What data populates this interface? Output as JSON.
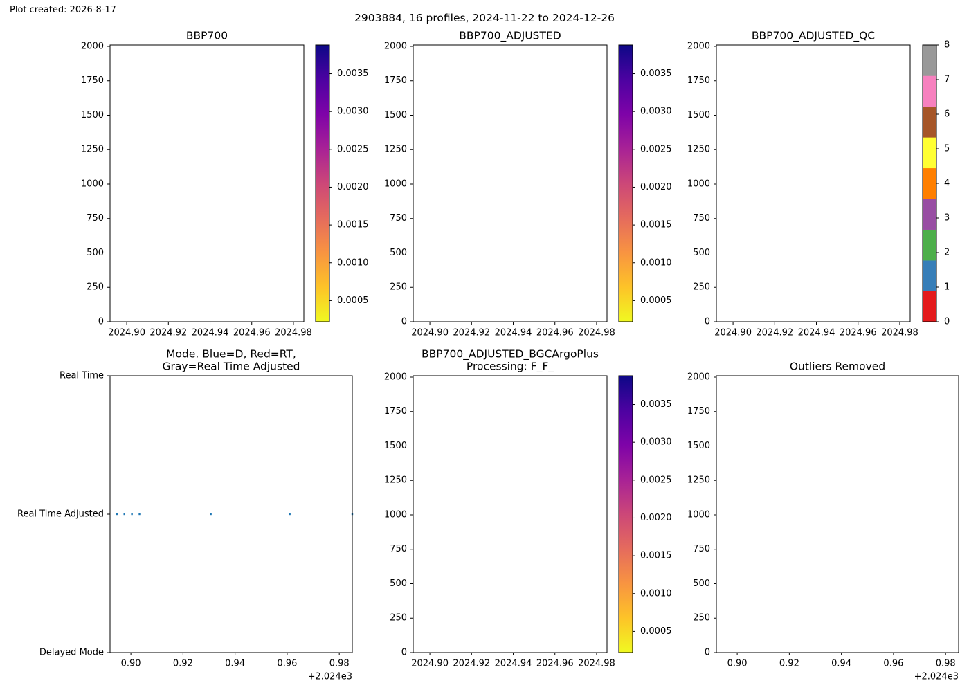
{
  "figure": {
    "created": "Plot created: 2026-8-17",
    "title": "2903884, 16 profiles, 2024-11-22 to 2024-12-26"
  },
  "colors": {
    "axis": "#000000",
    "scatter": "#1f77b4",
    "plasma_r": [
      "#f0f921",
      "#fdc328",
      "#f89441",
      "#e56b5d",
      "#cc4778",
      "#a82296",
      "#7e03a8",
      "#4c02a1",
      "#0d0887"
    ],
    "qc": [
      "#e41a1c",
      "#377eb8",
      "#4daf4a",
      "#984ea3",
      "#ff7f00",
      "#ffff33",
      "#a65628",
      "#f781bf",
      "#999999"
    ]
  },
  "chart_data": [
    {
      "id": "bbp700",
      "type": "heatmap",
      "title": "BBP700",
      "xlim": [
        2024.892,
        2024.985
      ],
      "xticks": [
        "2024.90",
        "2024.92",
        "2024.94",
        "2024.96",
        "2024.98"
      ],
      "xtick_values": [
        2024.9,
        2024.92,
        2024.94,
        2024.96,
        2024.98
      ],
      "ylim": [
        2010,
        0
      ],
      "yticks": [
        "0",
        "250",
        "500",
        "750",
        "1000",
        "1250",
        "1500",
        "1750",
        "2000"
      ],
      "ytick_values": [
        0,
        250,
        500,
        750,
        1000,
        1250,
        1500,
        1750,
        2000
      ],
      "values": [],
      "colorbar": {
        "range": [
          0.00022,
          0.00388
        ],
        "ticks": [
          "0.0005",
          "0.0010",
          "0.0015",
          "0.0020",
          "0.0025",
          "0.0030",
          "0.0035"
        ],
        "tick_values": [
          0.0005,
          0.001,
          0.0015,
          0.002,
          0.0025,
          0.003,
          0.0035
        ],
        "cmap": "plasma_r"
      }
    },
    {
      "id": "bbp700-adjusted",
      "type": "heatmap",
      "title": "BBP700_ADJUSTED",
      "xlim": [
        2024.892,
        2024.985
      ],
      "xticks": [
        "2024.90",
        "2024.92",
        "2024.94",
        "2024.96",
        "2024.98"
      ],
      "xtick_values": [
        2024.9,
        2024.92,
        2024.94,
        2024.96,
        2024.98
      ],
      "ylim": [
        2010,
        0
      ],
      "yticks": [
        "0",
        "250",
        "500",
        "750",
        "1000",
        "1250",
        "1500",
        "1750",
        "2000"
      ],
      "ytick_values": [
        0,
        250,
        500,
        750,
        1000,
        1250,
        1500,
        1750,
        2000
      ],
      "values": [],
      "colorbar": {
        "range": [
          0.00022,
          0.00388
        ],
        "ticks": [
          "0.0005",
          "0.0010",
          "0.0015",
          "0.0020",
          "0.0025",
          "0.0030",
          "0.0035"
        ],
        "tick_values": [
          0.0005,
          0.001,
          0.0015,
          0.002,
          0.0025,
          0.003,
          0.0035
        ],
        "cmap": "plasma_r"
      }
    },
    {
      "id": "bbp700-adjusted-qc",
      "type": "heatmap",
      "title": "BBP700_ADJUSTED_QC",
      "xlim": [
        2024.892,
        2024.985
      ],
      "xticks": [
        "2024.90",
        "2024.92",
        "2024.94",
        "2024.96",
        "2024.98"
      ],
      "xtick_values": [
        2024.9,
        2024.92,
        2024.94,
        2024.96,
        2024.98
      ],
      "ylim": [
        2010,
        0
      ],
      "yticks": [
        "0",
        "250",
        "500",
        "750",
        "1000",
        "1250",
        "1500",
        "1750",
        "2000"
      ],
      "ytick_values": [
        0,
        250,
        500,
        750,
        1000,
        1250,
        1500,
        1750,
        2000
      ],
      "values": [],
      "colorbar": {
        "range": [
          0,
          8
        ],
        "ticks": [
          "0",
          "1",
          "2",
          "3",
          "4",
          "5",
          "6",
          "7",
          "8"
        ],
        "tick_values": [
          0,
          1,
          2,
          3,
          4,
          5,
          6,
          7,
          8
        ],
        "cmap": "qc"
      }
    },
    {
      "id": "mode",
      "type": "scatter",
      "title": "Mode. Blue=D, Red=RT,",
      "title2": "Gray=Real Time Adjusted",
      "xlim": [
        2024.892,
        2024.985
      ],
      "xticks": [
        "0.90",
        "0.92",
        "0.94",
        "0.96",
        "0.98"
      ],
      "xtick_values": [
        2024.9,
        2024.92,
        2024.94,
        2024.96,
        2024.98
      ],
      "x_offset": "+2.024e3",
      "ylim": [
        0,
        2
      ],
      "yticks": [
        "Real Time",
        "Real Time Adjusted",
        "Delayed Mode"
      ],
      "ytick_values": [
        0,
        1,
        2
      ],
      "x": [
        2024.8946,
        2024.8975,
        2024.9004,
        2024.9033,
        2024.9307,
        2024.961,
        2024.985
      ],
      "y": [
        1,
        1,
        1,
        1,
        1,
        1,
        1
      ]
    },
    {
      "id": "bgcargoplus",
      "type": "heatmap",
      "title": "BBP700_ADJUSTED_BGCArgoPlus",
      "title2": "Processing: F_F_",
      "xlim": [
        2024.892,
        2024.985
      ],
      "xticks": [
        "2024.90",
        "2024.92",
        "2024.94",
        "2024.96",
        "2024.98"
      ],
      "xtick_values": [
        2024.9,
        2024.92,
        2024.94,
        2024.96,
        2024.98
      ],
      "ylim": [
        2010,
        0
      ],
      "yticks": [
        "0",
        "250",
        "500",
        "750",
        "1000",
        "1250",
        "1500",
        "1750",
        "2000"
      ],
      "ytick_values": [
        0,
        250,
        500,
        750,
        1000,
        1250,
        1500,
        1750,
        2000
      ],
      "values": [],
      "colorbar": {
        "range": [
          0.00022,
          0.00388
        ],
        "ticks": [
          "0.0005",
          "0.0010",
          "0.0015",
          "0.0020",
          "0.0025",
          "0.0030",
          "0.0035"
        ],
        "tick_values": [
          0.0005,
          0.001,
          0.0015,
          0.002,
          0.0025,
          0.003,
          0.0035
        ],
        "cmap": "plasma_r"
      }
    },
    {
      "id": "outliers",
      "type": "scatter",
      "title": "Outliers Removed",
      "xlim": [
        2024.892,
        2024.985
      ],
      "xticks": [
        "0.90",
        "0.92",
        "0.94",
        "0.96",
        "0.98"
      ],
      "xtick_values": [
        2024.9,
        2024.92,
        2024.94,
        2024.96,
        2024.98
      ],
      "x_offset": "+2.024e3",
      "ylim": [
        2010,
        0
      ],
      "yticks": [
        "0",
        "250",
        "500",
        "750",
        "1000",
        "1250",
        "1500",
        "1750",
        "2000"
      ],
      "ytick_values": [
        0,
        250,
        500,
        750,
        1000,
        1250,
        1500,
        1750,
        2000
      ],
      "x": [],
      "y": []
    }
  ]
}
